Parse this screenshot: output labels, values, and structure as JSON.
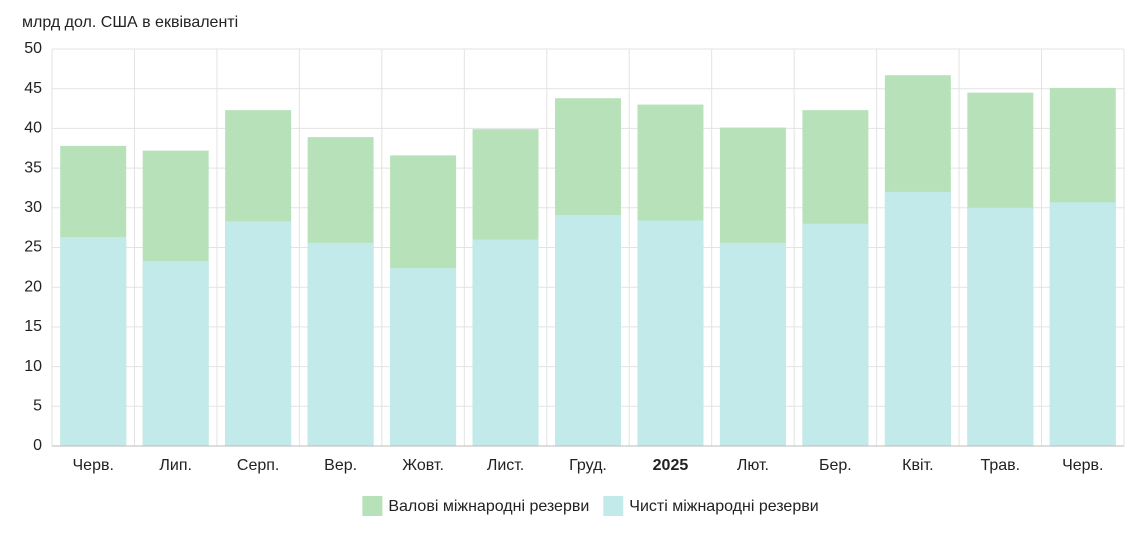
{
  "chart_data": {
    "type": "bar",
    "y_label": "млрд дол. США в еквіваленті",
    "categories": [
      "Черв.",
      "Лип.",
      "Серп.",
      "Вер.",
      "Жовт.",
      "Лист.",
      "Груд.",
      "2025",
      "Лют.",
      "Бер.",
      "Квіт.",
      "Трав.",
      "Черв."
    ],
    "series": [
      {
        "name": "Валові міжнародні резерви",
        "color": "#b7e1b9",
        "values": [
          37.8,
          37.2,
          42.3,
          38.9,
          36.6,
          39.9,
          43.8,
          43.0,
          40.1,
          42.3,
          46.7,
          44.5,
          45.1
        ]
      },
      {
        "name": "Чисті міжнародні резерви",
        "color": "#c3eaea",
        "values": [
          26.3,
          23.3,
          28.3,
          25.6,
          22.4,
          26.0,
          29.1,
          28.4,
          25.6,
          28.0,
          32.0,
          30.0,
          30.7
        ]
      }
    ],
    "ylim": [
      0,
      50
    ],
    "yticks": [
      0,
      5,
      10,
      15,
      20,
      25,
      30,
      35,
      40,
      45,
      50
    ],
    "grid": true,
    "legend": "bottom"
  }
}
